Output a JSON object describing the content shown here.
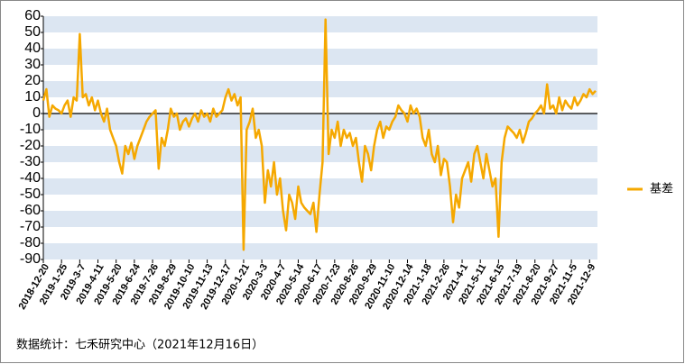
{
  "chart_data": {
    "type": "line",
    "categories": [
      "2018-12-20",
      null,
      null,
      null,
      null,
      null,
      "2019-1-25",
      null,
      null,
      null,
      null,
      null,
      "2019-3-7",
      null,
      null,
      null,
      null,
      null,
      "2019-4-11",
      null,
      null,
      null,
      null,
      null,
      "2019-5-20",
      null,
      null,
      null,
      null,
      null,
      "2019-6-24",
      null,
      null,
      null,
      null,
      null,
      "2019-7-26",
      null,
      null,
      null,
      null,
      null,
      "2019-8-29",
      null,
      null,
      null,
      null,
      null,
      "2019-10-10",
      null,
      null,
      null,
      null,
      null,
      "2019-11-13",
      null,
      null,
      null,
      null,
      null,
      "2019-12-17",
      null,
      null,
      null,
      null,
      null,
      "2020-1-21",
      null,
      null,
      null,
      null,
      null,
      "2020-3-3",
      null,
      null,
      null,
      null,
      null,
      "2020-4-7",
      null,
      null,
      null,
      null,
      null,
      "2020-5-14",
      null,
      null,
      null,
      null,
      null,
      "2020-6-17",
      null,
      null,
      null,
      null,
      null,
      "2020-7-23",
      null,
      null,
      null,
      null,
      null,
      "2020-8-26",
      null,
      null,
      null,
      null,
      null,
      "2020-9-29",
      null,
      null,
      null,
      null,
      null,
      "2020-11-10",
      null,
      null,
      null,
      null,
      null,
      "2020-12-14",
      null,
      null,
      null,
      null,
      null,
      "2021-1-18",
      null,
      null,
      null,
      null,
      null,
      "2021-2-26",
      null,
      null,
      null,
      null,
      null,
      "2021-4-1",
      null,
      null,
      null,
      null,
      null,
      "2021-5-11",
      null,
      null,
      null,
      null,
      null,
      "2021-6-15",
      null,
      null,
      null,
      null,
      null,
      "2021-7-19",
      null,
      null,
      null,
      null,
      null,
      "2021-8-20",
      null,
      null,
      null,
      null,
      null,
      "2021-9-27",
      null,
      null,
      null,
      null,
      null,
      "2021-11-5",
      null,
      null,
      null,
      null,
      null,
      "2021-12-9",
      null,
      null
    ],
    "series": [
      {
        "name": "基差",
        "color": "#f5a800",
        "values": [
          8,
          15,
          -2,
          5,
          3,
          2,
          0,
          5,
          8,
          -2,
          10,
          8,
          49,
          10,
          12,
          5,
          10,
          2,
          8,
          0,
          -5,
          3,
          -10,
          -15,
          -20,
          -30,
          -37,
          -20,
          -25,
          -18,
          -28,
          -20,
          -15,
          -10,
          -5,
          -2,
          0,
          2,
          -34,
          -15,
          -20,
          -10,
          3,
          -2,
          0,
          -10,
          -5,
          -3,
          -8,
          -3,
          0,
          -5,
          2,
          -2,
          0,
          -5,
          3,
          -2,
          0,
          2,
          10,
          15,
          8,
          12,
          5,
          10,
          -84,
          -10,
          -5,
          3,
          -15,
          -10,
          -20,
          -55,
          -35,
          -45,
          -30,
          -50,
          -40,
          -60,
          -72,
          -50,
          -55,
          -65,
          -45,
          -55,
          -58,
          -60,
          -62,
          -55,
          -73,
          -50,
          -30,
          58,
          -25,
          -10,
          -15,
          -5,
          -20,
          -10,
          -15,
          -12,
          -20,
          -15,
          -30,
          -42,
          -20,
          -25,
          -35,
          -20,
          -10,
          -5,
          -15,
          -8,
          -10,
          -5,
          -2,
          5,
          2,
          0,
          -5,
          5,
          0,
          3,
          -2,
          -15,
          -20,
          -10,
          -25,
          -30,
          -20,
          -38,
          -28,
          -30,
          -45,
          -67,
          -50,
          -58,
          -40,
          -35,
          -30,
          -42,
          -25,
          -20,
          -30,
          -40,
          -25,
          -35,
          -45,
          -40,
          -76,
          -30,
          -15,
          -8,
          -10,
          -12,
          -15,
          -10,
          -18,
          -12,
          -5,
          -3,
          0,
          2,
          5,
          0,
          18,
          3,
          5,
          0,
          10,
          2,
          8,
          5,
          3,
          10,
          5,
          8,
          12,
          10,
          15,
          12,
          14
        ]
      }
    ],
    "ylim": [
      -90,
      60
    ],
    "yticks": [
      -90,
      -80,
      -70,
      -60,
      -50,
      -40,
      -30,
      -20,
      -10,
      0,
      10,
      20,
      30,
      40,
      50,
      60
    ],
    "grid": "bands",
    "legend": "right",
    "source": "数据统计：七禾研究中心（2021年12月16日）"
  }
}
